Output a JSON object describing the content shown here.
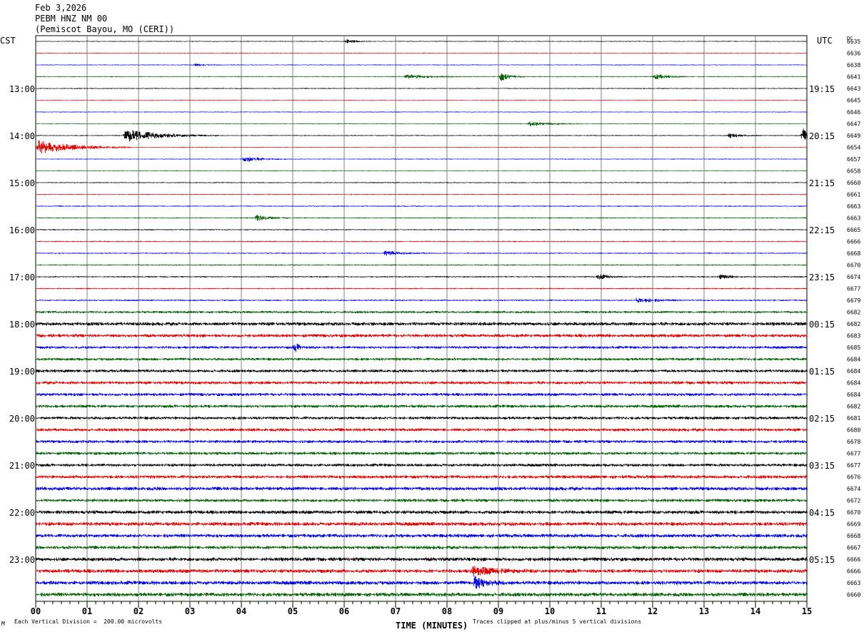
{
  "header": {
    "date": "Feb 3,2026",
    "station": "PEBM HNZ NM 00",
    "location": "(Pemiscot Bayou, MO (CERI))"
  },
  "axes": {
    "left_tz": "CST",
    "right_tz": "UTC",
    "dc_label": "DC",
    "xlabel": "TIME (MINUTES)"
  },
  "footer": {
    "mark": "M",
    "scale": "Each Vertical Division =  200.00 microvolts",
    "clip": "Traces clipped at plus/minus 5 vertical divisions"
  },
  "colors": {
    "cycle": [
      "#000000",
      "#e00000",
      "#0000e0",
      "#006000"
    ],
    "grid": "#808080"
  },
  "chart_data": {
    "type": "line",
    "subtype": "helicorder",
    "x_range": [
      0,
      15
    ],
    "x_unit": "minutes",
    "x_ticks": [
      "00",
      "01",
      "02",
      "03",
      "04",
      "05",
      "06",
      "07",
      "08",
      "09",
      "10",
      "11",
      "12",
      "13",
      "14",
      "15"
    ],
    "left_hour_labels": [
      "13:00",
      "14:00",
      "15:00",
      "16:00",
      "17:00",
      "18:00",
      "19:00",
      "20:00",
      "21:00",
      "22:00",
      "23:00"
    ],
    "right_hour_labels": [
      "19:15",
      "20:15",
      "21:15",
      "22:15",
      "23:15",
      "00:15",
      "01:15",
      "02:15",
      "03:15",
      "04:15",
      "05:15"
    ],
    "hour_label_rows": [
      4,
      8,
      12,
      16,
      20,
      24,
      28,
      32,
      36,
      40,
      44
    ],
    "dc_values": [
      6635,
      6636,
      6638,
      6641,
      6643,
      6645,
      6646,
      6647,
      6649,
      6654,
      6657,
      6658,
      6660,
      6661,
      6663,
      6663,
      6665,
      6666,
      6668,
      6670,
      6674,
      6677,
      6679,
      6682,
      6682,
      6683,
      6685,
      6684,
      6684,
      6684,
      6684,
      6682,
      6681,
      6680,
      6678,
      6677,
      6677,
      6676,
      6674,
      6672,
      6670,
      6669,
      6668,
      6667,
      6666,
      6666,
      6663,
      6660
    ],
    "noise_level": [
      0.6,
      0.6,
      0.6,
      0.7,
      0.7,
      0.6,
      0.6,
      0.6,
      0.7,
      0.6,
      0.6,
      0.6,
      0.7,
      0.7,
      0.8,
      0.8,
      0.8,
      0.8,
      0.8,
      0.9,
      0.9,
      0.9,
      1.0,
      1.6,
      2.4,
      2.2,
      1.8,
      1.9,
      2.0,
      2.1,
      2.0,
      2.1,
      2.0,
      2.1,
      2.0,
      2.0,
      2.0,
      2.2,
      2.4,
      2.1,
      2.4,
      2.5,
      2.4,
      2.3,
      2.5,
      2.5,
      2.6,
      2.6
    ],
    "events": [
      {
        "row": 0,
        "minute": 6.05,
        "amp": 3,
        "dur": 0.15
      },
      {
        "row": 2,
        "minute": 3.1,
        "amp": 1.5,
        "dur": 0.2
      },
      {
        "row": 3,
        "minute": 7.2,
        "amp": 3,
        "dur": 0.4
      },
      {
        "row": 3,
        "minute": 9.05,
        "amp": 6,
        "dur": 0.15
      },
      {
        "row": 3,
        "minute": 12.05,
        "amp": 4,
        "dur": 0.2
      },
      {
        "row": 7,
        "minute": 9.6,
        "amp": 3,
        "dur": 0.35
      },
      {
        "row": 8,
        "minute": 1.75,
        "amp": 9,
        "dur": 0.6
      },
      {
        "row": 8,
        "minute": 13.5,
        "amp": 3,
        "dur": 0.2
      },
      {
        "row": 8,
        "minute": 14.92,
        "amp": 10,
        "dur": 0.1
      },
      {
        "row": 9,
        "minute": 0.05,
        "amp": 10,
        "dur": 0.6
      },
      {
        "row": 10,
        "minute": 4.05,
        "amp": 4,
        "dur": 0.3
      },
      {
        "row": 15,
        "minute": 4.3,
        "amp": 4,
        "dur": 0.2
      },
      {
        "row": 18,
        "minute": 6.8,
        "amp": 3,
        "dur": 0.3
      },
      {
        "row": 20,
        "minute": 10.95,
        "amp": 5,
        "dur": 0.15
      },
      {
        "row": 20,
        "minute": 13.3,
        "amp": 3,
        "dur": 0.2
      },
      {
        "row": 22,
        "minute": 11.7,
        "amp": 4,
        "dur": 0.3
      },
      {
        "row": 26,
        "minute": 5.05,
        "amp": 5,
        "dur": 0.1
      },
      {
        "row": 45,
        "minute": 8.5,
        "amp": 6,
        "dur": 0.4
      },
      {
        "row": 46,
        "minute": 8.55,
        "amp": 8,
        "dur": 0.2
      }
    ]
  }
}
